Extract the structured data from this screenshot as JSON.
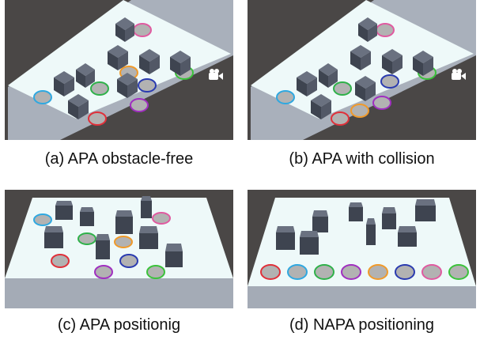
{
  "panels": [
    {
      "id": "a",
      "caption": "(a) APA obstacle-free"
    },
    {
      "id": "b",
      "caption": "(b) APA with collision"
    },
    {
      "id": "c",
      "caption": "(c) APA positionig"
    },
    {
      "id": "d",
      "caption": "(d) NAPA positioning"
    }
  ],
  "colors": {
    "background": "#4a4746",
    "table_top": "#eef9f9",
    "table_side": "#a4abb6",
    "box_top": "#6a7180",
    "box_side": "#3e4450",
    "disc_fill": "#b2b2b2",
    "ring_colors": [
      "#e0303a",
      "#2fa8e0",
      "#2fb14a",
      "#a02fc0",
      "#f09a2a",
      "#2a3bb0",
      "#e05aa0",
      "#3bc23b"
    ]
  },
  "icons": {
    "camera": "camera-icon"
  }
}
